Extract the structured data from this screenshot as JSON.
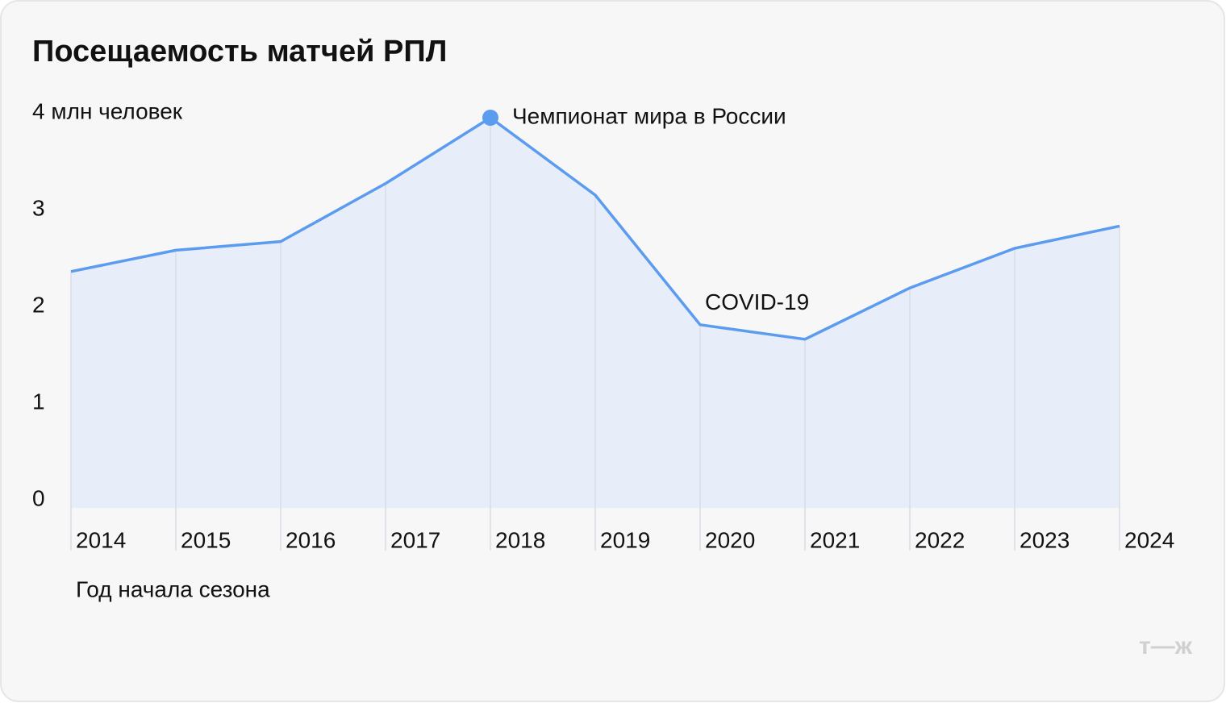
{
  "chart_data": {
    "type": "line",
    "title": "Посещаемость матчей РПЛ",
    "x_label": "Год начала сезона",
    "categories": [
      "2014",
      "2015",
      "2016",
      "2017",
      "2018",
      "2019",
      "2020",
      "2021",
      "2022",
      "2023",
      "2024"
    ],
    "series": [
      {
        "color": "#5b9bf0",
        "values": [
          2.36,
          2.58,
          2.67,
          3.27,
          3.95,
          3.15,
          1.81,
          1.66,
          2.19,
          2.6,
          2.83
        ]
      }
    ],
    "ylim": [
      0,
      4
    ],
    "yticks": [
      0,
      1,
      2,
      3,
      {
        "value": 4,
        "label": "4 млн человек"
      }
    ],
    "annotations": [
      "Чемпионат мира в России",
      "COVID-19"
    ],
    "logo": "т—ж"
  }
}
